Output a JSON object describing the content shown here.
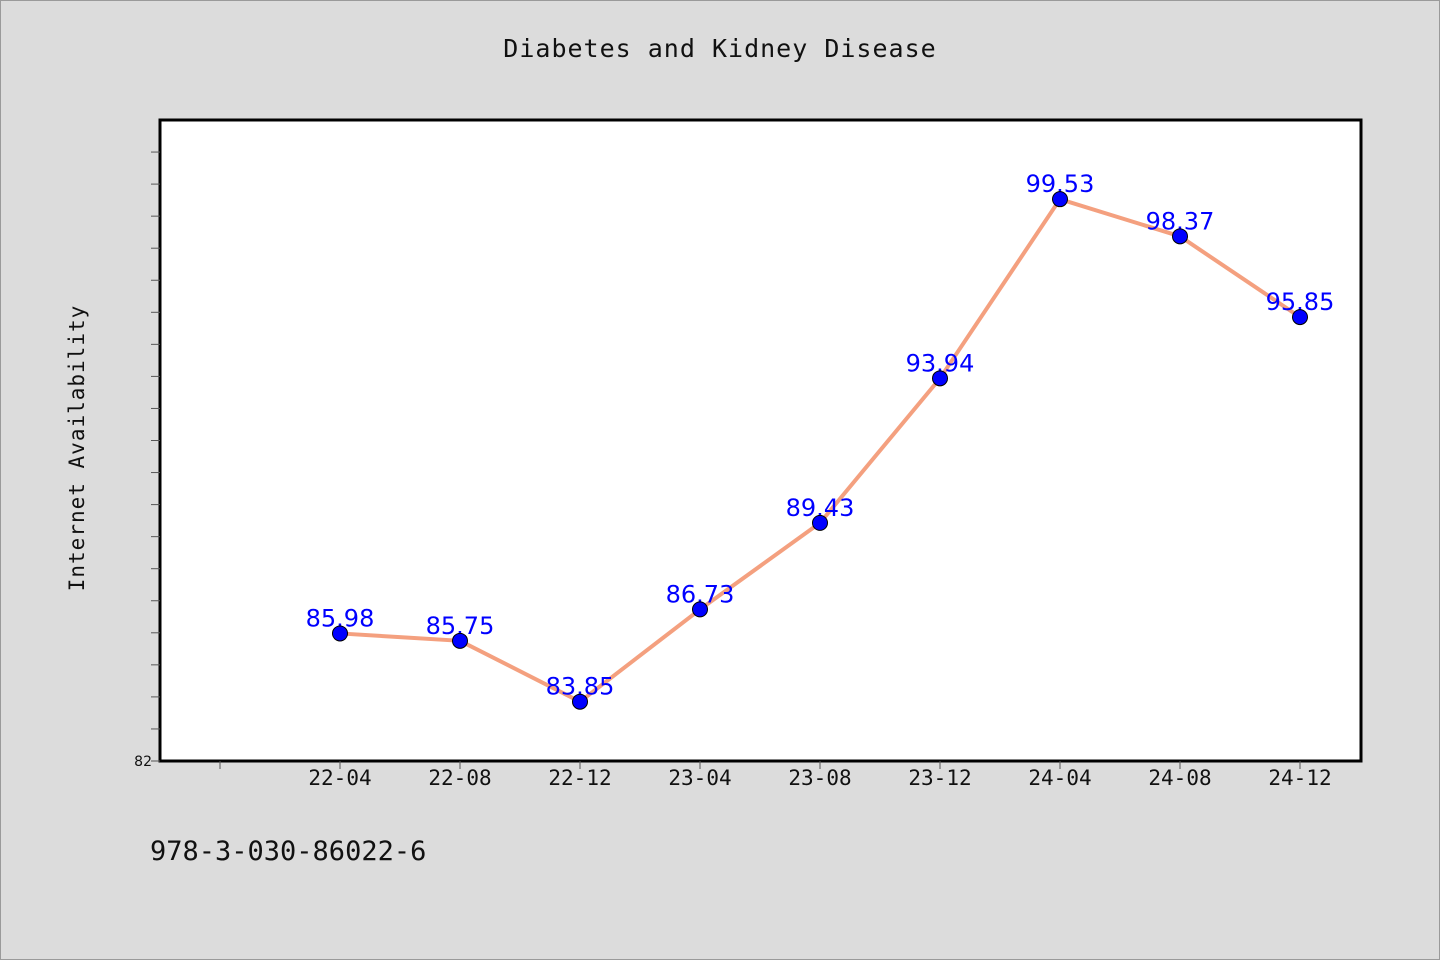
{
  "chart_data": {
    "type": "line",
    "title": "Diabetes and Kidney Disease",
    "xlabel": "",
    "ylabel": "Internet Availability",
    "categories": [
      "22-04",
      "22-08",
      "22-12",
      "23-04",
      "23-08",
      "23-12",
      "24-04",
      "24-08",
      "24-12"
    ],
    "series": [
      {
        "values": [
          85.98,
          85.75,
          83.85,
          86.73,
          89.43,
          93.94,
          99.53,
          98.37,
          95.85
        ]
      }
    ],
    "data_labels": [
      "85.98",
      "85.75",
      "83.85",
      "86.73",
      "89.43",
      "93.94",
      "99.53",
      "98.37",
      "95.85"
    ],
    "y_tick_labels": [
      "82"
    ],
    "ylim": [
      82,
      102
    ],
    "grid": false,
    "legend": "none",
    "colors": {
      "line": "#f4a07f",
      "marker": "#0000ff",
      "data_label": "#0000ff",
      "plot_background": "#ffffff",
      "page_background": "#dcdcdc"
    }
  },
  "footer": {
    "isbn": "978-3-030-86022-6"
  }
}
